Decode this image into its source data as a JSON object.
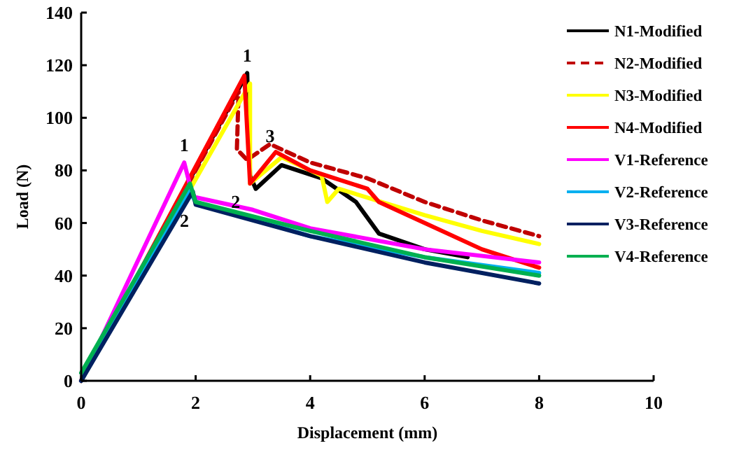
{
  "chart_data": {
    "type": "line",
    "xlabel": "Displacement (mm)",
    "ylabel": "Load (N)",
    "xlim": [
      0,
      10
    ],
    "ylim": [
      0,
      140
    ],
    "xticks": [
      0,
      2,
      4,
      6,
      8,
      10
    ],
    "yticks": [
      0,
      20,
      40,
      60,
      80,
      100,
      120,
      140
    ],
    "grid": false,
    "legend": "top right",
    "marker": "none",
    "series": [
      {
        "name": "N1-Modified",
        "color": "#000000",
        "line_style": "solid",
        "x": [
          0,
          2.9,
          2.95,
          3.05,
          3.5,
          4.2,
          4.8,
          5.2,
          6,
          6.75
        ],
        "values": [
          0,
          117,
          78,
          73,
          82,
          77,
          68,
          56,
          50,
          47
        ]
      },
      {
        "name": "N2-Modified",
        "color": "#c00000",
        "line_style": "dashed",
        "x": [
          0,
          2.75,
          2.72,
          2.9,
          3.3,
          4,
          5,
          6,
          7,
          8
        ],
        "values": [
          0,
          110,
          88,
          84,
          90,
          83,
          77,
          68,
          61,
          55
        ]
      },
      {
        "name": "N3-Modified",
        "color": "#ffff00",
        "line_style": "solid",
        "x": [
          0,
          2.95,
          2.95,
          3.5,
          4.2,
          4.3,
          4.5,
          6,
          7,
          8
        ],
        "values": [
          0,
          113,
          75,
          85,
          78,
          68,
          73,
          63,
          57,
          52
        ]
      },
      {
        "name": "N4-Modified",
        "color": "#ff0000",
        "line_style": "solid",
        "x": [
          0,
          2.85,
          2.95,
          3.4,
          4,
          5,
          5.2,
          6,
          7,
          8
        ],
        "values": [
          0,
          116,
          75,
          87,
          80,
          73,
          68,
          60,
          50,
          43
        ]
      },
      {
        "name": "V1-Reference",
        "color": "#ff00ff",
        "line_style": "solid",
        "x": [
          0,
          1.8,
          1.95,
          3,
          4,
          6,
          8
        ],
        "values": [
          0,
          83,
          70,
          65,
          58,
          50,
          45
        ]
      },
      {
        "name": "V2-Reference",
        "color": "#00b0f0",
        "line_style": "solid",
        "x": [
          0,
          1.9,
          2,
          4,
          6,
          8
        ],
        "values": [
          0,
          72,
          68,
          55,
          47,
          41
        ]
      },
      {
        "name": "V3-Reference",
        "color": "#002060",
        "line_style": "solid",
        "x": [
          0,
          1.95,
          2,
          4,
          6,
          8
        ],
        "values": [
          0,
          72,
          67,
          55,
          45,
          37
        ]
      },
      {
        "name": "V4-Reference",
        "color": "#00b050",
        "line_style": "solid",
        "x": [
          0,
          1.9,
          2,
          4,
          6,
          8
        ],
        "values": [
          3,
          75,
          68,
          57,
          47,
          40
        ]
      }
    ],
    "annotations": [
      {
        "text": "1",
        "x": 1.8,
        "y": 83
      },
      {
        "text": "1",
        "x": 2.9,
        "y": 117
      },
      {
        "text": "2",
        "x": 2,
        "y": 67
      },
      {
        "text": "2",
        "x": 2.7,
        "y": 68
      },
      {
        "text": "3",
        "x": 3.3,
        "y": 93
      }
    ]
  }
}
